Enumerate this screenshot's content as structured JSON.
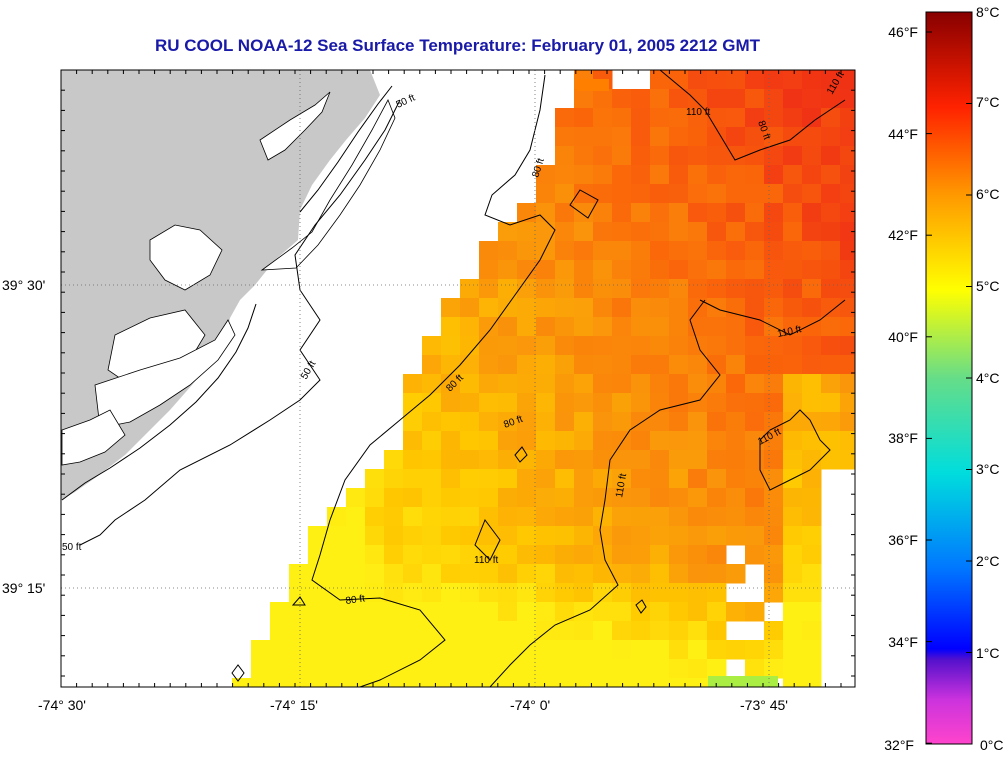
{
  "title": "RU COOL  NOAA-12  Sea Surface Temperature:  February 01, 2005 2212 GMT",
  "axes": {
    "x_ticks": [
      "-74° 30'",
      "-74° 15'",
      "-74° 0'",
      "-73° 45'"
    ],
    "y_ticks": [
      "39° 30'",
      "39° 15'"
    ]
  },
  "contour_labels": {
    "c50": "50 ft",
    "c80": "80 ft",
    "c110": "110 ft"
  },
  "colorbar": {
    "fahrenheit": [
      "46°F",
      "44°F",
      "42°F",
      "40°F",
      "38°F",
      "36°F",
      "34°F",
      "32°F"
    ],
    "celsius": [
      "8°C",
      "7°C",
      "6°C",
      "5°C",
      "4°C",
      "3°C",
      "2°C",
      "1°C",
      "0°C"
    ]
  },
  "colors": {
    "land": "#c8c8c8",
    "title": "#1a1aa8"
  }
}
